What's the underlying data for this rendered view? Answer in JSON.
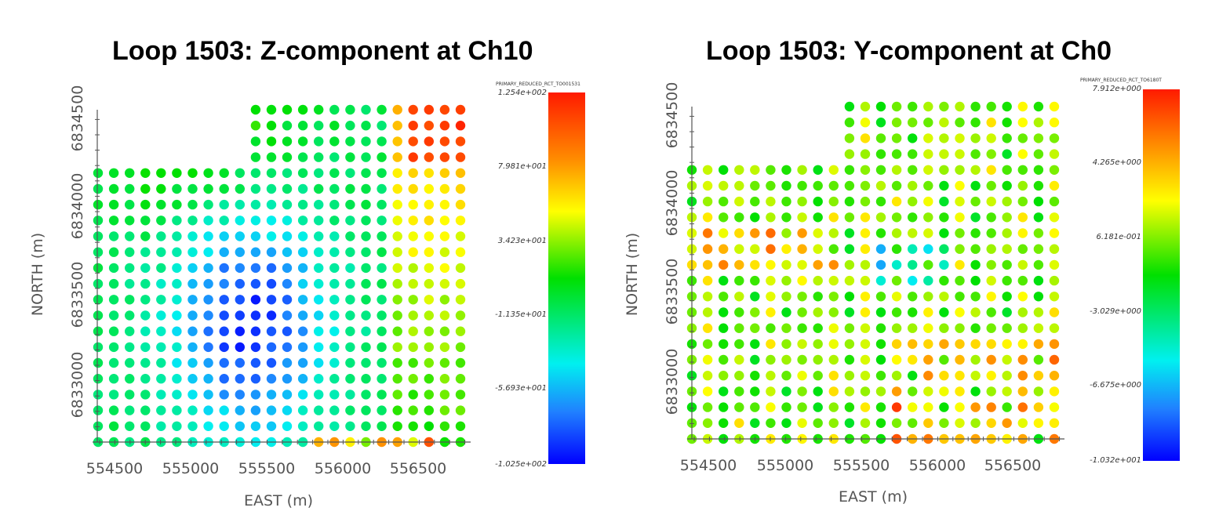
{
  "chart_data": [
    {
      "type": "scatter",
      "title": "Loop 1503: Z-component at Ch10",
      "xlabel": "EAST (m)",
      "ylabel": "NORTH (m)",
      "x_ticks": [
        "554500",
        "555000",
        "555500",
        "556000",
        "556500"
      ],
      "y_ticks": [
        "6833000",
        "6833500",
        "6834000",
        "6834500"
      ],
      "xlim": [
        554500,
        556750
      ],
      "ylim": [
        6832900,
        6834700
      ],
      "colorbar": {
        "label": "PRIMARY_REDUCED_RCT_TO001531",
        "tick_labels": [
          "1.254e+002",
          "7.981e+001",
          "3.423e+001",
          "-1.135e+001",
          "-5.693e+001",
          "-1.025e+002"
        ]
      },
      "grid": false
    },
    {
      "type": "scatter",
      "title": "Loop 1503: Y-component at Ch0",
      "xlabel": "EAST (m)",
      "ylabel": "NORTH (m)",
      "x_ticks": [
        "554500",
        "555000",
        "555500",
        "556000",
        "556500"
      ],
      "y_ticks": [
        "6833000",
        "6833500",
        "6834000",
        "6834500"
      ],
      "xlim": [
        554500,
        556750
      ],
      "ylim": [
        6832900,
        6834700
      ],
      "colorbar": {
        "label": "PRIMARY_REDUCED_RCT_TO6180T",
        "tick_labels": [
          "7.912e+000",
          "4.265e+000",
          "6.181e-001",
          "-3.029e+000",
          "-6.675e+000",
          "-1.032e+001"
        ]
      },
      "grid": false
    }
  ]
}
